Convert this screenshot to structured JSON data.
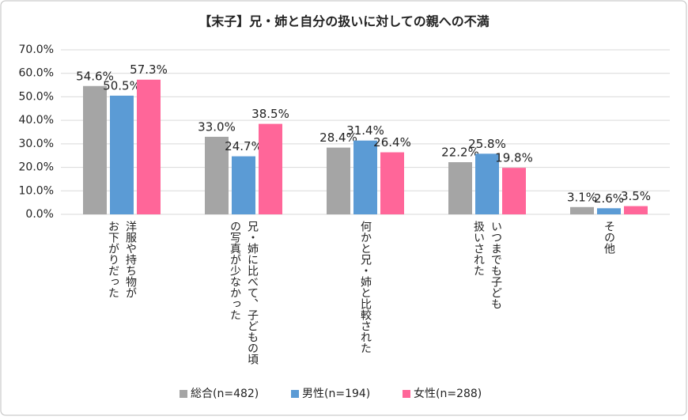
{
  "chart_data": {
    "type": "bar",
    "title": "【末子】兄・姉と自分の扱いに対しての親への不満",
    "categories": [
      "洋服や持ち物が\nお下がりだった",
      "兄・姉に比べて、子どもの頃\nの写真が少なかった",
      "何かと兄・姉と比較された",
      "いつまでも子ども\n扱いされた",
      "その他"
    ],
    "series": [
      {
        "name": "総合(n=482)",
        "color": "#a5a5a5",
        "values": [
          54.6,
          33.0,
          28.4,
          22.2,
          3.1
        ],
        "value_labels": [
          "54.6%",
          "33.0%",
          "28.4%",
          "22.2%",
          "3.1%"
        ]
      },
      {
        "name": "男性(n=194)",
        "color": "#5b9bd5",
        "values": [
          50.5,
          24.7,
          31.4,
          25.8,
          2.6
        ],
        "value_labels": [
          "50.5%",
          "24.7%",
          "31.4%",
          "25.8%",
          "2.6%"
        ]
      },
      {
        "name": "女性(n=288)",
        "color": "#ff6699",
        "values": [
          57.3,
          38.5,
          26.4,
          19.8,
          3.5
        ],
        "value_labels": [
          "57.3%",
          "38.5%",
          "26.4%",
          "19.8%",
          "3.5%"
        ]
      }
    ],
    "ylim": [
      0,
      70
    ],
    "yticks": [
      {
        "value": 0,
        "label": "0.0%"
      },
      {
        "value": 10,
        "label": "10.0%"
      },
      {
        "value": 20,
        "label": "20.0%"
      },
      {
        "value": 30,
        "label": "30.0%"
      },
      {
        "value": 40,
        "label": "40.0%"
      },
      {
        "value": 50,
        "label": "50.0%"
      },
      {
        "value": 60,
        "label": "60.0%"
      },
      {
        "value": 70,
        "label": "70.0%"
      }
    ],
    "grid": true,
    "legend": "bottom"
  }
}
